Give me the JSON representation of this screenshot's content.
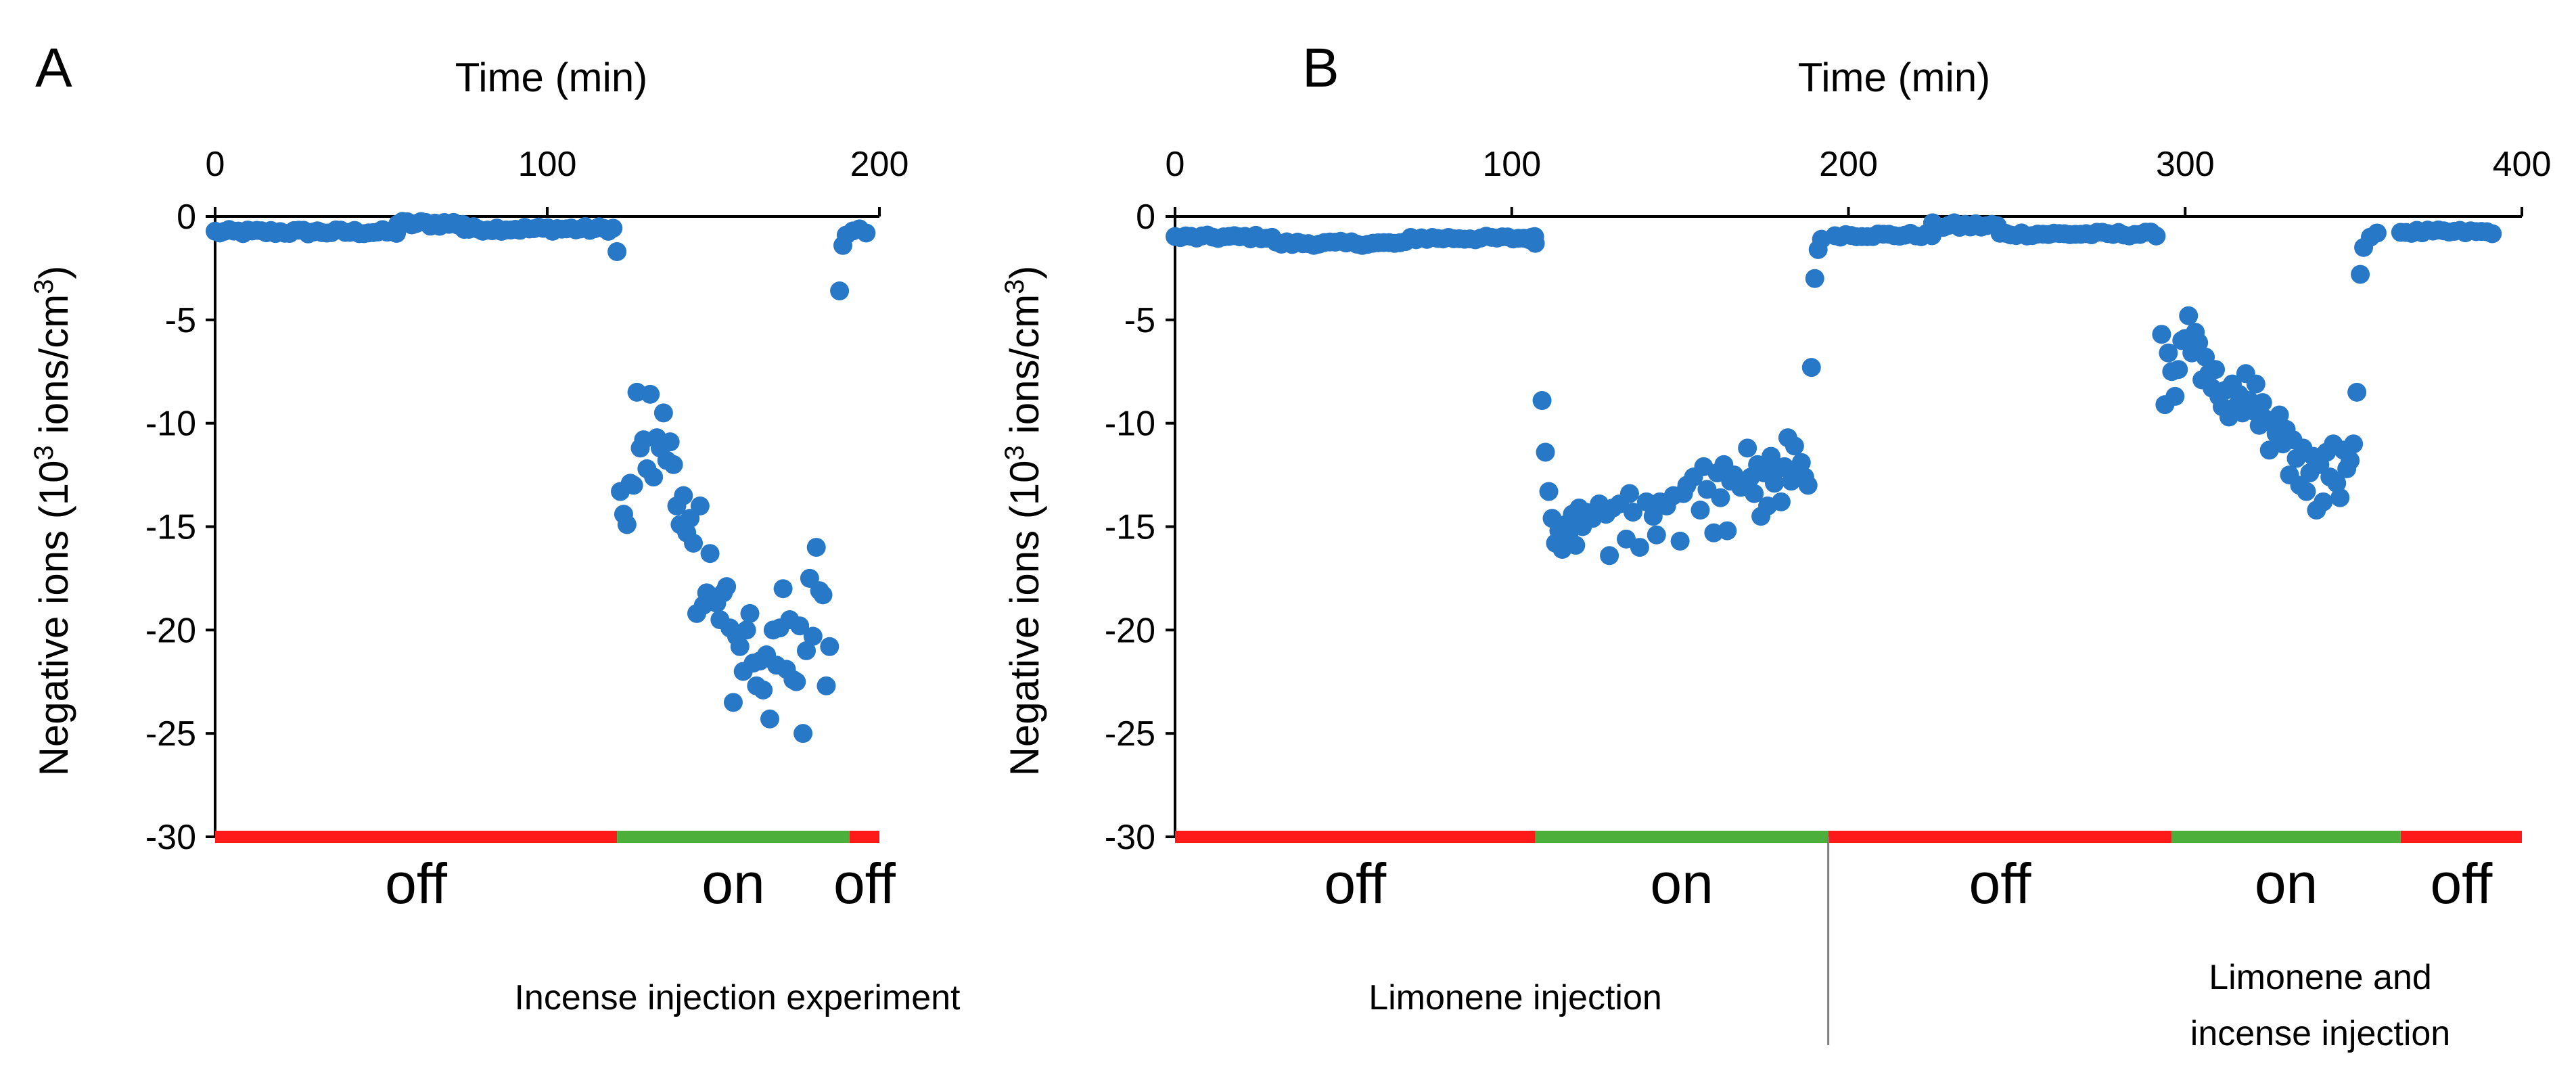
{
  "figure": {
    "panel_a_label": "A",
    "panel_b_label": "B"
  },
  "colors": {
    "points": "#2878c8",
    "off_bar": "#ff1a1a",
    "on_bar": "#4caf3c",
    "axis": "#000000",
    "divider": "#808080"
  },
  "chart_data": [
    {
      "type": "scatter",
      "panel": "A",
      "title": "",
      "xlabel": "Time (min)",
      "ylabel_prefix": "Negative ions (10",
      "ylabel_sup1": "3",
      "ylabel_mid": " ions/cm",
      "ylabel_sup2": "3",
      "ylabel_suffix": ")",
      "xlim": [
        0,
        200
      ],
      "ylim": [
        -30,
        0
      ],
      "xticks": [
        0,
        100,
        200
      ],
      "yticks": [
        0,
        -5,
        -10,
        -15,
        -20,
        -25,
        -30
      ],
      "x_axis_position": "top",
      "grid": false,
      "legend": "none",
      "phases": [
        {
          "label": "off",
          "start": 0,
          "end": 121,
          "state": "off"
        },
        {
          "label": "on",
          "start": 121,
          "end": 191,
          "state": "on"
        },
        {
          "label": "off",
          "start": 191,
          "end": 200,
          "state": "off"
        }
      ],
      "captions": [
        "Incense injection experiment"
      ],
      "segments": [
        {
          "kind": "flat",
          "x0": 0,
          "x1": 55,
          "step": 1.4,
          "y": -0.75,
          "jitter": 0.12
        },
        {
          "kind": "flat",
          "x0": 55,
          "x1": 75,
          "step": 1.4,
          "y": -0.35,
          "jitter": 0.15
        },
        {
          "kind": "flat",
          "x0": 75,
          "x1": 120,
          "step": 1.4,
          "y": -0.6,
          "jitter": 0.12
        }
      ],
      "points": [
        [
          121,
          -1.7
        ],
        [
          122,
          -13.3
        ],
        [
          123,
          -14.4
        ],
        [
          124,
          -14.9
        ],
        [
          125,
          -12.9
        ],
        [
          126,
          -13.0
        ],
        [
          127,
          -8.5
        ],
        [
          128,
          -11.2
        ],
        [
          129,
          -10.8
        ],
        [
          130,
          -12.2
        ],
        [
          131,
          -8.6
        ],
        [
          132,
          -12.6
        ],
        [
          133,
          -10.7
        ],
        [
          134,
          -11.2
        ],
        [
          135,
          -9.5
        ],
        [
          136,
          -11.8
        ],
        [
          137,
          -10.9
        ],
        [
          138,
          -12.0
        ],
        [
          139,
          -14.0
        ],
        [
          140,
          -14.9
        ],
        [
          141,
          -13.5
        ],
        [
          142,
          -15.3
        ],
        [
          143,
          -14.6
        ],
        [
          144,
          -15.8
        ],
        [
          145,
          -19.2
        ],
        [
          146,
          -14.0
        ],
        [
          147,
          -18.8
        ],
        [
          148,
          -18.2
        ],
        [
          149,
          -16.3
        ],
        [
          150,
          -18.4
        ],
        [
          151,
          -18.7
        ],
        [
          152,
          -19.5
        ],
        [
          153,
          -18.2
        ],
        [
          154,
          -17.9
        ],
        [
          155,
          -19.9
        ],
        [
          156,
          -23.5
        ],
        [
          157,
          -20.3
        ],
        [
          158,
          -20.8
        ],
        [
          159,
          -22.0
        ],
        [
          160,
          -20.0
        ],
        [
          161,
          -19.2
        ],
        [
          162,
          -21.6
        ],
        [
          163,
          -22.7
        ],
        [
          164,
          -21.5
        ],
        [
          165,
          -22.9
        ],
        [
          166,
          -21.2
        ],
        [
          167,
          -24.3
        ],
        [
          168,
          -20.0
        ],
        [
          169,
          -21.7
        ],
        [
          170,
          -19.9
        ],
        [
          171,
          -18.0
        ],
        [
          172,
          -21.9
        ],
        [
          173,
          -19.5
        ],
        [
          174,
          -22.4
        ],
        [
          175,
          -22.5
        ],
        [
          176,
          -19.8
        ],
        [
          177,
          -25.0
        ],
        [
          178,
          -21.0
        ],
        [
          179,
          -17.5
        ],
        [
          180,
          -20.3
        ],
        [
          181,
          -16.0
        ],
        [
          182,
          -18.1
        ],
        [
          183,
          -18.3
        ],
        [
          184,
          -22.7
        ],
        [
          185,
          -20.8
        ],
        [
          188,
          -3.6
        ],
        [
          189,
          -1.4
        ],
        [
          190,
          -0.9
        ],
        [
          192,
          -0.7
        ],
        [
          194,
          -0.6
        ],
        [
          196,
          -0.8
        ]
      ]
    },
    {
      "type": "scatter",
      "panel": "B",
      "title": "",
      "xlabel": "Time (min)",
      "ylabel_prefix": "Negative ions (10",
      "ylabel_sup1": "3",
      "ylabel_mid": " ions/cm",
      "ylabel_sup2": "3",
      "ylabel_suffix": ")",
      "xlim": [
        0,
        400
      ],
      "ylim": [
        -30,
        0
      ],
      "xticks": [
        0,
        100,
        200,
        300,
        400
      ],
      "yticks": [
        0,
        -5,
        -10,
        -15,
        -20,
        -25,
        -30
      ],
      "x_axis_position": "top",
      "grid": false,
      "legend": "none",
      "phases": [
        {
          "label": "off",
          "start": 0,
          "end": 107,
          "state": "off"
        },
        {
          "label": "on",
          "start": 107,
          "end": 194,
          "state": "on"
        },
        {
          "label": "off",
          "start": 194,
          "end": 296,
          "state": "off"
        },
        {
          "label": "on",
          "start": 296,
          "end": 364,
          "state": "on"
        },
        {
          "label": "off",
          "start": 364,
          "end": 400,
          "state": "off"
        }
      ],
      "captions": [
        "Limonene injection",
        "Limonene and",
        "incense injection"
      ],
      "divider_at": 194,
      "segments": [
        {
          "kind": "flat",
          "x0": 0,
          "x1": 30,
          "step": 1.6,
          "y": -1.0,
          "jitter": 0.1
        },
        {
          "kind": "flat",
          "x0": 30,
          "x1": 70,
          "step": 1.6,
          "y": -1.3,
          "jitter": 0.1
        },
        {
          "kind": "flat",
          "x0": 70,
          "x1": 107,
          "step": 1.6,
          "y": -1.05,
          "jitter": 0.1
        },
        {
          "kind": "flat",
          "x0": 196,
          "x1": 225,
          "step": 1.6,
          "y": -0.9,
          "jitter": 0.1
        },
        {
          "kind": "flat",
          "x0": 225,
          "x1": 245,
          "step": 1.6,
          "y": -0.45,
          "jitter": 0.15
        },
        {
          "kind": "flat",
          "x0": 245,
          "x1": 293,
          "step": 1.6,
          "y": -0.85,
          "jitter": 0.1
        },
        {
          "kind": "flat",
          "x0": 364,
          "x1": 392,
          "step": 1.6,
          "y": -0.75,
          "jitter": 0.1
        }
      ],
      "points": [
        [
          106,
          -1.0
        ],
        [
          107,
          -1.3
        ],
        [
          109,
          -8.9
        ],
        [
          110,
          -11.4
        ],
        [
          111,
          -13.3
        ],
        [
          112,
          -14.6
        ],
        [
          113,
          -15.8
        ],
        [
          114,
          -15.2
        ],
        [
          115,
          -16.1
        ],
        [
          116,
          -14.9
        ],
        [
          117,
          -15.5
        ],
        [
          118,
          -14.4
        ],
        [
          119,
          -15.9
        ],
        [
          120,
          -14.1
        ],
        [
          121,
          -15.0
        ],
        [
          122,
          -14.3
        ],
        [
          124,
          -14.6
        ],
        [
          126,
          -13.9
        ],
        [
          128,
          -14.4
        ],
        [
          129,
          -16.4
        ],
        [
          130,
          -14.1
        ],
        [
          132,
          -13.9
        ],
        [
          134,
          -15.6
        ],
        [
          135,
          -13.4
        ],
        [
          136,
          -14.3
        ],
        [
          138,
          -16.0
        ],
        [
          140,
          -13.8
        ],
        [
          142,
          -14.5
        ],
        [
          143,
          -15.4
        ],
        [
          144,
          -13.8
        ],
        [
          146,
          -14.0
        ],
        [
          148,
          -13.5
        ],
        [
          150,
          -15.7
        ],
        [
          151,
          -13.4
        ],
        [
          152,
          -13.0
        ],
        [
          154,
          -12.6
        ],
        [
          156,
          -14.2
        ],
        [
          157,
          -12.1
        ],
        [
          158,
          -13.2
        ],
        [
          160,
          -15.3
        ],
        [
          161,
          -12.4
        ],
        [
          162,
          -13.6
        ],
        [
          163,
          -12.0
        ],
        [
          164,
          -15.2
        ],
        [
          165,
          -12.8
        ],
        [
          166,
          -12.5
        ],
        [
          168,
          -13.1
        ],
        [
          170,
          -11.2
        ],
        [
          171,
          -12.6
        ],
        [
          172,
          -13.4
        ],
        [
          173,
          -12.0
        ],
        [
          174,
          -14.5
        ],
        [
          175,
          -12.4
        ],
        [
          176,
          -14.0
        ],
        [
          177,
          -11.6
        ],
        [
          178,
          -12.9
        ],
        [
          179,
          -12.2
        ],
        [
          180,
          -13.8
        ],
        [
          181,
          -12.1
        ],
        [
          182,
          -10.7
        ],
        [
          183,
          -12.8
        ],
        [
          184,
          -11.1
        ],
        [
          185,
          -12.4
        ],
        [
          186,
          -11.9
        ],
        [
          187,
          -12.6
        ],
        [
          188,
          -13.0
        ],
        [
          189,
          -7.3
        ],
        [
          190,
          -3.0
        ],
        [
          191,
          -1.6
        ],
        [
          192,
          -1.1
        ],
        [
          293,
          -5.7
        ],
        [
          294,
          -9.1
        ],
        [
          295,
          -6.6
        ],
        [
          296,
          -7.5
        ],
        [
          297,
          -8.7
        ],
        [
          298,
          -7.4
        ],
        [
          299,
          -6.0
        ],
        [
          300,
          -5.9
        ],
        [
          301,
          -4.8
        ],
        [
          302,
          -6.6
        ],
        [
          303,
          -5.6
        ],
        [
          304,
          -6.1
        ],
        [
          305,
          -7.9
        ],
        [
          306,
          -6.8
        ],
        [
          307,
          -7.6
        ],
        [
          308,
          -8.3
        ],
        [
          309,
          -7.4
        ],
        [
          310,
          -8.7
        ],
        [
          311,
          -9.2
        ],
        [
          312,
          -8.4
        ],
        [
          313,
          -9.7
        ],
        [
          314,
          -8.1
        ],
        [
          315,
          -9.2
        ],
        [
          316,
          -8.6
        ],
        [
          317,
          -9.5
        ],
        [
          318,
          -7.6
        ],
        [
          319,
          -8.9
        ],
        [
          320,
          -9.4
        ],
        [
          321,
          -8.1
        ],
        [
          322,
          -10.1
        ],
        [
          323,
          -9.0
        ],
        [
          324,
          -9.8
        ],
        [
          325,
          -11.3
        ],
        [
          326,
          -10.0
        ],
        [
          327,
          -10.5
        ],
        [
          328,
          -9.6
        ],
        [
          329,
          -11.0
        ],
        [
          330,
          -10.3
        ],
        [
          331,
          -12.5
        ],
        [
          332,
          -10.8
        ],
        [
          333,
          -11.7
        ],
        [
          334,
          -13.0
        ],
        [
          335,
          -11.2
        ],
        [
          336,
          -13.3
        ],
        [
          337,
          -12.4
        ],
        [
          338,
          -11.6
        ],
        [
          339,
          -14.2
        ],
        [
          340,
          -12.0
        ],
        [
          341,
          -13.8
        ],
        [
          342,
          -11.4
        ],
        [
          343,
          -12.6
        ],
        [
          344,
          -11.0
        ],
        [
          345,
          -12.9
        ],
        [
          346,
          -13.6
        ],
        [
          347,
          -11.3
        ],
        [
          348,
          -12.2
        ],
        [
          349,
          -11.8
        ],
        [
          350,
          -11.0
        ],
        [
          351,
          -8.5
        ],
        [
          352,
          -2.8
        ],
        [
          353,
          -1.5
        ],
        [
          355,
          -1.0
        ],
        [
          357,
          -0.8
        ]
      ]
    }
  ]
}
